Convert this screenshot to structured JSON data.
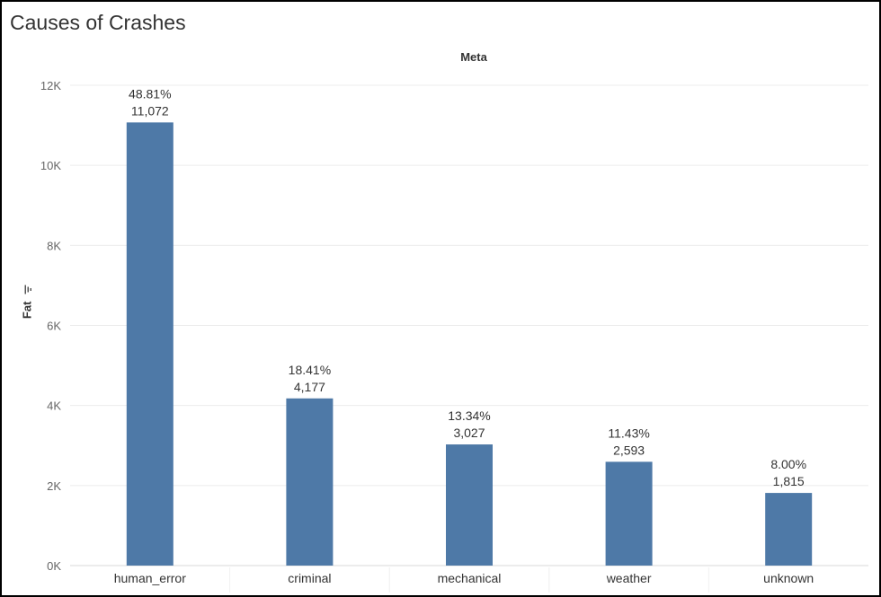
{
  "title": "Causes of Crashes",
  "column_header": "Meta",
  "colors": {
    "bar": "#4e79a7",
    "grid": "#ececec"
  },
  "chart_data": {
    "type": "bar",
    "title": "Causes of Crashes",
    "column_header": "Meta",
    "ylabel": "Fat",
    "ylim": [
      0,
      12000
    ],
    "yticks": [
      0,
      2000,
      4000,
      6000,
      8000,
      10000,
      12000
    ],
    "ytick_labels": [
      "0K",
      "2K",
      "4K",
      "6K",
      "8K",
      "10K",
      "12K"
    ],
    "grid": true,
    "categories": [
      "human_error",
      "criminal",
      "mechanical",
      "weather",
      "unknown"
    ],
    "values": [
      11072,
      4177,
      3027,
      2593,
      1815
    ],
    "value_labels": [
      "11,072",
      "4,177",
      "3,027",
      "2,593",
      "1,815"
    ],
    "percent_labels": [
      "48.81%",
      "18.41%",
      "13.34%",
      "11.43%",
      "8.00%"
    ]
  }
}
